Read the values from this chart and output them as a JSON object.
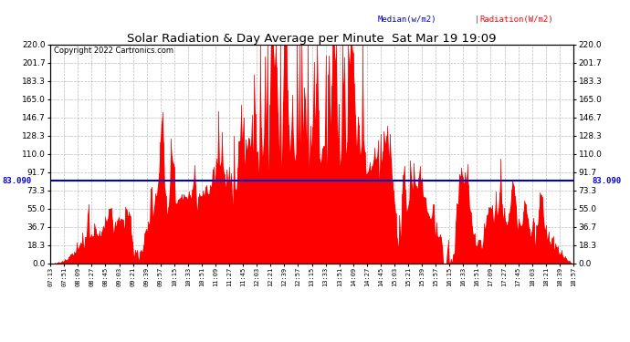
{
  "title": "Solar Radiation & Day Average per Minute  Sat Mar 19 19:09",
  "copyright": "Copyright 2022 Cartronics.com",
  "legend_median": "Median(w/m2)",
  "legend_radiation": "Radiation(W/m2)",
  "median_value": 83.09,
  "median_label": "83.090",
  "y_ticks": [
    0.0,
    18.3,
    36.7,
    55.0,
    73.3,
    91.7,
    110.0,
    128.3,
    146.7,
    165.0,
    183.3,
    201.7,
    220.0
  ],
  "y_max": 220.0,
  "y_min": 0.0,
  "background_color": "#ffffff",
  "plot_bg_color": "#ffffff",
  "bar_color": "#ff0000",
  "median_color": "#0000cc",
  "grid_color": "#aaaaaa",
  "title_color": "#000000",
  "copyright_color": "#000000",
  "median_legend_color": "#0000cc",
  "radiation_legend_color": "#ff0000",
  "x_tick_labels": [
    "07:13",
    "07:51",
    "08:09",
    "08:27",
    "08:45",
    "09:03",
    "09:21",
    "09:39",
    "09:57",
    "10:15",
    "10:33",
    "10:51",
    "11:09",
    "11:27",
    "11:45",
    "12:03",
    "12:21",
    "12:39",
    "12:57",
    "13:15",
    "13:33",
    "13:51",
    "14:09",
    "14:27",
    "14:45",
    "15:03",
    "15:21",
    "15:39",
    "15:57",
    "16:15",
    "16:33",
    "16:51",
    "17:09",
    "17:27",
    "17:45",
    "18:03",
    "18:21",
    "18:39",
    "18:57"
  ],
  "num_points": 440
}
